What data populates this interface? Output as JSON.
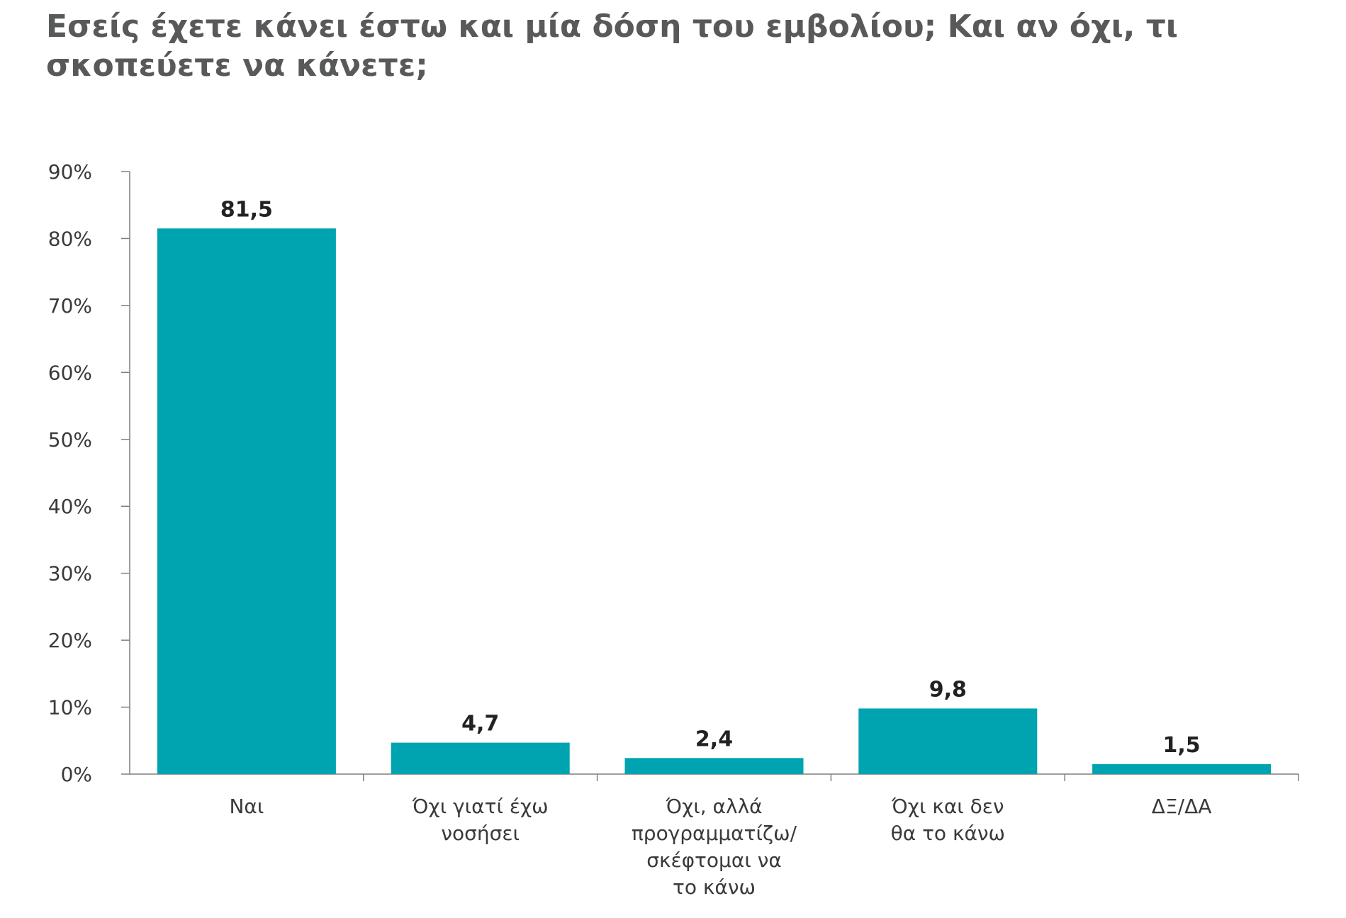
{
  "chart_data": {
    "type": "bar",
    "title": "Εσείς έχετε κάνει έστω και μία δόση του εμβολίου; Και αν όχι, τι σκοπεύετε να κάνετε;",
    "categories": [
      [
        "Ναι"
      ],
      [
        "Όχι γιατί έχω",
        "νοσήσει"
      ],
      [
        "Όχι, αλλά",
        "προγραμματίζω/",
        "σκέφτομαι να",
        "το κάνω"
      ],
      [
        "Όχι και δεν",
        "θα το κάνω"
      ],
      [
        "ΔΞ/ΔΑ"
      ]
    ],
    "values": [
      81.5,
      4.7,
      2.4,
      9.8,
      1.5
    ],
    "value_labels": [
      "81,5",
      "4,7",
      "2,4",
      "9,8",
      "1,5"
    ],
    "ylim": [
      0,
      90
    ],
    "yticks": [
      0,
      10,
      20,
      30,
      40,
      50,
      60,
      70,
      80,
      90
    ],
    "ytick_labels": [
      "0%",
      "10%",
      "20%",
      "30%",
      "40%",
      "50%",
      "60%",
      "70%",
      "80%",
      "90%"
    ],
    "xlabel": "",
    "ylabel": "",
    "grid": false,
    "bar_color": "#00a3b0",
    "axis_color": "#7f7f7f"
  }
}
